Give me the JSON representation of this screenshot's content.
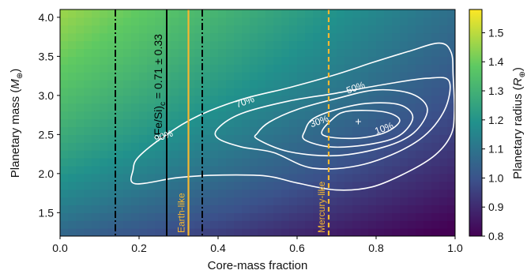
{
  "chart_data": {
    "type": "heatmap",
    "xlabel": "Core-mass fraction",
    "ylabel_main": "Planetary mass (",
    "ylabel_italic": "M",
    "ylabel_sub": "⊕",
    "ylabel_close": ")",
    "xlim": [
      0.0,
      1.0
    ],
    "ylim": [
      1.2,
      4.1
    ],
    "xticks": [
      "0.0",
      "0.2",
      "0.4",
      "0.6",
      "0.8",
      "1.0"
    ],
    "xtick_values": [
      0.0,
      0.2,
      0.4,
      0.6,
      0.8,
      1.0
    ],
    "yticks": [
      "1.5",
      "2.0",
      "2.5",
      "3.0",
      "3.5",
      "4.0"
    ],
    "ytick_values": [
      1.5,
      2.0,
      2.5,
      3.0,
      3.5,
      4.0
    ],
    "colorbar": {
      "label_main": "Planetary radius (",
      "label_italic": "R",
      "label_sub": "⊕",
      "label_close": ")",
      "range": [
        0.8,
        1.58
      ],
      "ticks": [
        "0.8",
        "0.9",
        "1.0",
        "1.1",
        "1.2",
        "1.3",
        "1.4",
        "1.5"
      ],
      "tick_values": [
        0.8,
        0.9,
        1.0,
        1.1,
        1.2,
        1.3,
        1.4,
        1.5
      ],
      "colormap": [
        "#440154",
        "#3b528b",
        "#21918c",
        "#5ec962",
        "#fde725"
      ]
    },
    "vertical_lines": [
      {
        "x": 0.14,
        "style": "dashdot",
        "color": "#000000"
      },
      {
        "x": 0.27,
        "style": "solid",
        "color": "#000000"
      },
      {
        "x": 0.36,
        "style": "dashdot",
        "color": "#000000"
      },
      {
        "x": 0.325,
        "style": "solid",
        "color": "#f5b731",
        "label": "Earth-like"
      },
      {
        "x": 0.68,
        "style": "dashed",
        "color": "#f5b731",
        "label": "Mercury-like"
      }
    ],
    "fe_si_label": {
      "prefix": "(Fe/Si)",
      "sub": "c",
      "value": " = 0.71 ± 0.33"
    },
    "marker": {
      "x": 0.755,
      "y": 2.67,
      "symbol": "+"
    },
    "contours": [
      {
        "level": "10%",
        "label_xy": [
          0.82,
          2.58
        ]
      },
      {
        "level": "30%",
        "label_xy": [
          0.656,
          2.67
        ]
      },
      {
        "level": "50%",
        "label_xy": [
          0.748,
          3.1
        ]
      },
      {
        "level": "70%",
        "label_xy": [
          0.468,
          2.92
        ]
      },
      {
        "level": "90%",
        "label_xy": [
          0.262,
          2.48
        ]
      }
    ],
    "contour_paths": [
      [
        [
          0.664,
          2.5
        ],
        [
          0.74,
          2.45
        ],
        [
          0.82,
          2.52
        ],
        [
          0.86,
          2.68
        ],
        [
          0.82,
          2.79
        ],
        [
          0.73,
          2.8
        ],
        [
          0.69,
          2.7
        ],
        [
          0.664,
          2.5
        ]
      ],
      [
        [
          0.62,
          2.43
        ],
        [
          0.69,
          2.34
        ],
        [
          0.79,
          2.38
        ],
        [
          0.86,
          2.49
        ],
        [
          0.893,
          2.72
        ],
        [
          0.86,
          2.88
        ],
        [
          0.78,
          2.9
        ],
        [
          0.7,
          2.82
        ],
        [
          0.64,
          2.7
        ],
        [
          0.62,
          2.55
        ],
        [
          0.62,
          2.43
        ]
      ],
      [
        [
          0.5,
          2.44
        ],
        [
          0.58,
          2.28
        ],
        [
          0.7,
          2.23
        ],
        [
          0.82,
          2.34
        ],
        [
          0.895,
          2.52
        ],
        [
          0.93,
          2.82
        ],
        [
          0.89,
          3.02
        ],
        [
          0.8,
          3.07
        ],
        [
          0.7,
          2.96
        ],
        [
          0.6,
          2.82
        ],
        [
          0.53,
          2.66
        ],
        [
          0.5,
          2.52
        ],
        [
          0.5,
          2.44
        ]
      ],
      [
        [
          0.4,
          2.45
        ],
        [
          0.46,
          2.34
        ],
        [
          0.54,
          2.27
        ],
        [
          0.64,
          2.07
        ],
        [
          0.77,
          2.12
        ],
        [
          0.9,
          2.4
        ],
        [
          0.97,
          2.78
        ],
        [
          0.985,
          3.18
        ],
        [
          0.93,
          3.22
        ],
        [
          0.82,
          3.14
        ],
        [
          0.7,
          3.03
        ],
        [
          0.58,
          2.93
        ],
        [
          0.46,
          2.77
        ],
        [
          0.4,
          2.58
        ],
        [
          0.4,
          2.45
        ]
      ],
      [
        [
          0.19,
          1.87
        ],
        [
          0.3,
          1.95
        ],
        [
          0.4,
          1.98
        ],
        [
          0.52,
          1.97
        ],
        [
          0.6,
          1.88
        ],
        [
          0.7,
          1.79
        ],
        [
          0.79,
          1.83
        ],
        [
          0.88,
          2.02
        ],
        [
          0.95,
          2.24
        ],
        [
          0.99,
          2.5
        ],
        [
          0.998,
          2.8
        ],
        [
          0.995,
          3.25
        ],
        [
          0.99,
          3.55
        ],
        [
          0.96,
          3.67
        ],
        [
          0.88,
          3.56
        ],
        [
          0.79,
          3.42
        ],
        [
          0.7,
          3.27
        ],
        [
          0.58,
          3.1
        ],
        [
          0.46,
          2.95
        ],
        [
          0.35,
          2.74
        ],
        [
          0.27,
          2.5
        ],
        [
          0.2,
          2.22
        ],
        [
          0.185,
          2.05
        ],
        [
          0.19,
          1.87
        ]
      ]
    ]
  }
}
